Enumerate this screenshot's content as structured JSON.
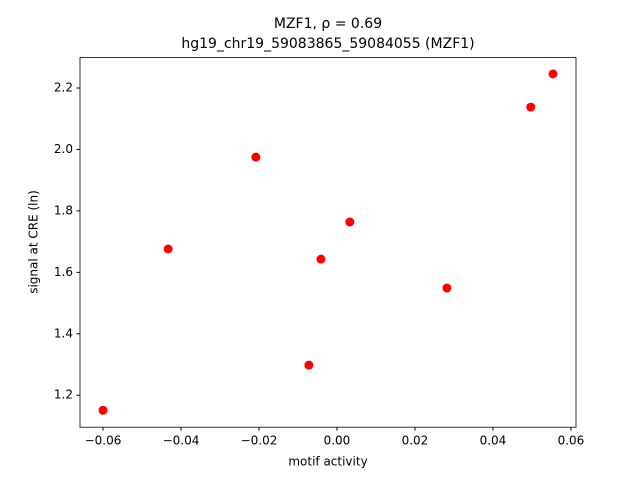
{
  "chart_data": {
    "type": "scatter",
    "title": "MZF1, ρ = 0.69",
    "subtitle": "hg19_chr19_59083865_59084055 (MZF1)",
    "x_label": "motif activity",
    "y_label": "signal at CRE (ln)",
    "color": "#ff0000",
    "x": [
      -0.06,
      -0.0433,
      -0.0208,
      -0.0072,
      -0.0041,
      0.0033,
      0.0282,
      0.0497,
      0.0554
    ],
    "values": [
      1.151,
      1.676,
      1.975,
      1.298,
      1.643,
      1.764,
      1.549,
      2.138,
      2.246
    ],
    "xlim": [
      -0.0659,
      0.0613
    ],
    "ylim": [
      1.096,
      2.299
    ],
    "xticks": [
      {
        "value": -0.06,
        "label": "−0.06"
      },
      {
        "value": -0.04,
        "label": "−0.04"
      },
      {
        "value": -0.02,
        "label": "−0.02"
      },
      {
        "value": 0,
        "label": "0.00"
      },
      0.02,
      0.04,
      0.06
    ],
    "yticks": [
      1.2,
      1.4,
      1.6,
      1.8,
      {
        "value": 2,
        "label": "2.0"
      },
      2.2
    ],
    "grid": false
  }
}
